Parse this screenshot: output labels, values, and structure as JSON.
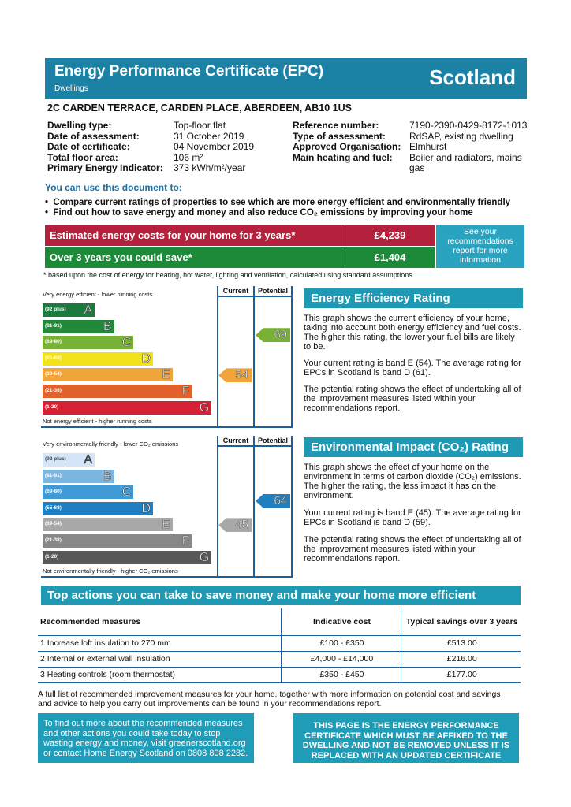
{
  "header": {
    "title": "Energy Performance Certificate (EPC)",
    "subtitle": "Dwellings",
    "region": "Scotland",
    "color": "#1b82a6"
  },
  "address": "2C CARDEN TERRACE,  CARDEN PLACE, ABERDEEN, AB10 1US",
  "details_left": {
    "labels": [
      "Dwelling type:",
      "Date of assessment:",
      "Date of certificate:",
      "Total floor area:",
      "Primary Energy Indicator:"
    ],
    "values": [
      "Top-floor flat",
      "31 October 2019",
      "04 November 2019",
      "106 m²",
      "373 kWh/m²/year"
    ]
  },
  "details_right": {
    "labels": [
      "Reference number:",
      "Type of assessment:",
      "Approved Organisation:",
      "Main heating and fuel:"
    ],
    "values": [
      "7190-2390-0429-8172-1013",
      "RdSAP, existing dwelling",
      "Elmhurst",
      "Boiler and radiators, mains gas"
    ]
  },
  "use": {
    "heading": "You can use this document to:",
    "bullets": [
      "Compare current ratings of properties to see which are more energy efficient and environmentally friendly",
      "Find out how to save energy and money and also reduce CO₂ emissions by improving your home"
    ]
  },
  "costs": {
    "estimated_label": "Estimated energy costs for your home for 3 years*",
    "estimated_value": "£4,239",
    "save_label": "Over 3 years you could save*",
    "save_value": "£1,404",
    "side": "See your recommendations report for more information",
    "footnote": "* based upon the cost of energy for heating, hot water, lighting and ventilation, calculated using standard assumptions"
  },
  "energy_chart": {
    "top": "Very energy efficient - lower running costs",
    "bottom": "Not energy efficient - higher running costs",
    "current_label": "Current",
    "potential_label": "Potential",
    "current": 54,
    "current_band": "E",
    "potential": 69,
    "potential_band": "C",
    "bands": [
      {
        "range": "(92 plus)",
        "letter": "A",
        "color": "#1b7a3e"
      },
      {
        "range": "(81-91)",
        "letter": "B",
        "color": "#23893a"
      },
      {
        "range": "(69-80)",
        "letter": "C",
        "color": "#78b234"
      },
      {
        "range": "(55-68)",
        "letter": "D",
        "color": "#f2e21c"
      },
      {
        "range": "(39-54)",
        "letter": "E",
        "color": "#f0a43a"
      },
      {
        "range": "(21-38)",
        "letter": "F",
        "color": "#e2622c"
      },
      {
        "range": "(1-20)",
        "letter": "G",
        "color": "#d42234"
      }
    ]
  },
  "env_chart": {
    "top": "Very environmentally friendly - lower CO₂ emissions",
    "bottom": "Not environmentally friendly - higher CO₂ emissions",
    "current_label": "Current",
    "potential_label": "Potential",
    "current": 45,
    "current_band": "E",
    "potential": 64,
    "potential_band": "D",
    "bands": [
      {
        "range": "(92 plus)",
        "letter": "A",
        "color": "#d3e5f6"
      },
      {
        "range": "(81-91)",
        "letter": "B",
        "color": "#7db5e1"
      },
      {
        "range": "(69-80)",
        "letter": "C",
        "color": "#3f9ad5"
      },
      {
        "range": "(55-68)",
        "letter": "D",
        "color": "#1f80c1"
      },
      {
        "range": "(39-54)",
        "letter": "E",
        "color": "#a8a8a8"
      },
      {
        "range": "(21-38)",
        "letter": "F",
        "color": "#888888"
      },
      {
        "range": "(1-20)",
        "letter": "G",
        "color": "#585858"
      }
    ]
  },
  "eer": {
    "heading": "Energy Efficiency Rating",
    "p1": "This graph shows the current efficiency of your home, taking into account both energy efficiency and fuel costs. The higher this rating, the lower your fuel bills are likely to be.",
    "p2": "Your current rating is band E (54). The average rating for EPCs in Scotland is band D (61).",
    "p3": "The potential rating shows the effect of undertaking all of the improvement measures listed within your recommendations report."
  },
  "eir": {
    "heading": "Environmental Impact (CO₂) Rating",
    "p1": "This graph shows the effect of your home on the environment in terms of carbon dioxide (CO₂) emissions. The higher the rating, the less impact it has on the environment.",
    "p2": "Your current rating is band E (45). The average rating for EPCs in Scotland is band D (59).",
    "p3": "The potential rating shows the effect of undertaking all of the improvement measures listed within your recommendations report."
  },
  "actions": {
    "heading": "Top actions you can take to save money and make your home more efficient",
    "columns": [
      "Recommended measures",
      "Indicative cost",
      "Typical savings over 3 years"
    ],
    "rows": [
      [
        "1 Increase loft insulation to 270 mm",
        "£100 - £350",
        "£513.00"
      ],
      [
        "2 Internal or external wall insulation",
        "£4,000 - £14,000",
        "£216.00"
      ],
      [
        "3 Heating controls (room thermostat)",
        "£350 - £450",
        "£177.00"
      ]
    ],
    "full_list": "A full list of recommended improvement measures for your home, together with more information on potential cost and savings and advice to help you carry out improvements can be found in your recommendations report."
  },
  "bottom": {
    "left": "To find out more about the recommended measures and other actions you could take today to stop wasting energy and money, visit greenerscotland.org or contact Home Energy Scotland on 0808 808 2282.",
    "right": "THIS PAGE IS THE ENERGY PERFORMANCE CERTIFICATE WHICH MUST BE AFFIXED TO THE DWELLING AND NOT BE REMOVED UNLESS IT IS REPLACED WITH AN UPDATED CERTIFICATE"
  }
}
